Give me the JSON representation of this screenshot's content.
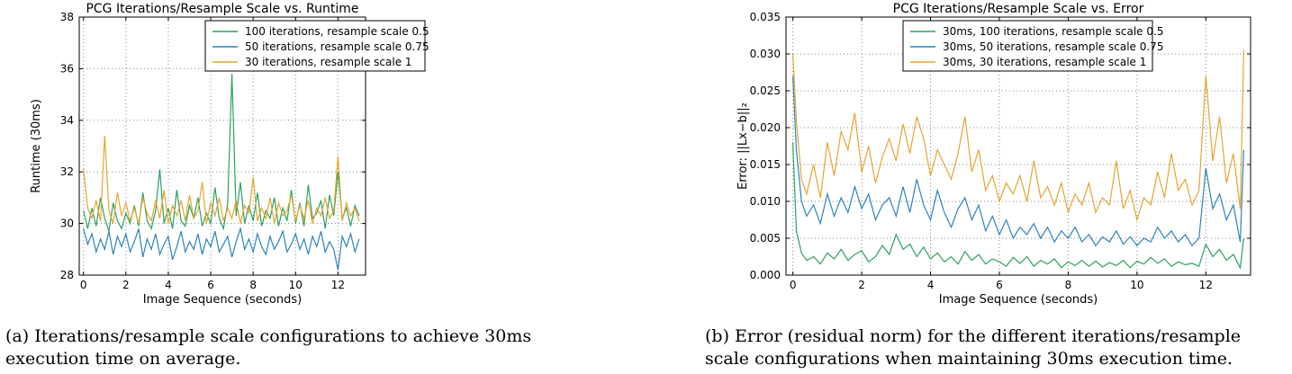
{
  "chart_data": [
    {
      "type": "line",
      "title": "PCG Iterations/Resample Scale vs. Runtime",
      "xlabel": "Image Sequence (seconds)",
      "ylabel": "Runtime (30ms)",
      "xlim": [
        -0.2,
        13.3
      ],
      "ylim": [
        28,
        38
      ],
      "xticks": [
        "0",
        "2",
        "4",
        "6",
        "8",
        "10",
        "12"
      ],
      "yticks": [
        "28",
        "30",
        "32",
        "34",
        "36",
        "38"
      ],
      "grid": true,
      "legend_position": "top-center",
      "series": [
        {
          "name": "100 iterations, resample scale 0.5",
          "color": "#2ca25f",
          "x": [
            0,
            0.2,
            0.4,
            0.6,
            0.8,
            1.0,
            1.2,
            1.4,
            1.6,
            1.8,
            2.0,
            2.2,
            2.4,
            2.6,
            2.8,
            3.0,
            3.2,
            3.4,
            3.6,
            3.8,
            4.0,
            4.2,
            4.4,
            4.6,
            4.8,
            5.0,
            5.2,
            5.4,
            5.6,
            5.8,
            6.0,
            6.2,
            6.4,
            6.6,
            6.8,
            7.0,
            7.2,
            7.4,
            7.6,
            7.8,
            8.0,
            8.2,
            8.4,
            8.6,
            8.8,
            9.0,
            9.2,
            9.4,
            9.6,
            9.8,
            10.0,
            10.2,
            10.4,
            10.6,
            10.8,
            11.0,
            11.2,
            11.4,
            11.6,
            11.8,
            12.0,
            12.2,
            12.4,
            12.6,
            12.8,
            13.0
          ],
          "values": [
            30.5,
            29.8,
            30.6,
            29.9,
            31.0,
            30.2,
            29.7,
            30.8,
            30.1,
            29.8,
            30.4,
            30.0,
            30.7,
            29.9,
            31.2,
            30.1,
            29.8,
            30.5,
            32.1,
            30.0,
            30.6,
            29.8,
            31.3,
            30.1,
            29.9,
            30.7,
            30.2,
            31.0,
            29.9,
            30.4,
            30.0,
            31.4,
            30.2,
            29.8,
            30.8,
            35.8,
            30.3,
            31.6,
            30.0,
            30.7,
            30.1,
            31.2,
            29.9,
            30.5,
            30.2,
            31.0,
            29.9,
            30.6,
            30.1,
            31.3,
            30.0,
            30.8,
            29.9,
            31.5,
            30.2,
            30.4,
            30.9,
            29.8,
            31.1,
            30.3,
            32.0,
            30.2,
            30.6,
            29.9,
            30.7,
            30.3
          ]
        },
        {
          "name": "50 iterations, resample scale 0.75",
          "color": "#2b83ba",
          "x": [
            0,
            0.2,
            0.4,
            0.6,
            0.8,
            1.0,
            1.2,
            1.4,
            1.6,
            1.8,
            2.0,
            2.2,
            2.4,
            2.6,
            2.8,
            3.0,
            3.2,
            3.4,
            3.6,
            3.8,
            4.0,
            4.2,
            4.4,
            4.6,
            4.8,
            5.0,
            5.2,
            5.4,
            5.6,
            5.8,
            6.0,
            6.2,
            6.4,
            6.6,
            6.8,
            7.0,
            7.2,
            7.4,
            7.6,
            7.8,
            8.0,
            8.2,
            8.4,
            8.6,
            8.8,
            9.0,
            9.2,
            9.4,
            9.6,
            9.8,
            10.0,
            10.2,
            10.4,
            10.6,
            10.8,
            11.0,
            11.2,
            11.4,
            11.6,
            11.8,
            12.0,
            12.2,
            12.4,
            12.6,
            12.8,
            13.0
          ],
          "values": [
            29.8,
            29.2,
            29.6,
            28.9,
            29.4,
            29.0,
            29.7,
            28.8,
            29.5,
            29.1,
            29.6,
            28.9,
            29.3,
            29.8,
            28.7,
            29.4,
            29.0,
            29.6,
            28.8,
            29.2,
            29.5,
            28.6,
            29.1,
            29.7,
            28.9,
            29.3,
            29.0,
            29.6,
            28.8,
            29.4,
            29.1,
            29.7,
            28.9,
            29.2,
            29.5,
            28.7,
            29.3,
            29.8,
            29.0,
            29.4,
            28.9,
            29.6,
            29.1,
            28.8,
            29.5,
            29.0,
            29.3,
            29.7,
            28.9,
            29.2,
            29.6,
            29.0,
            29.4,
            28.8,
            29.5,
            29.1,
            29.7,
            28.9,
            29.3,
            29.0,
            28.2,
            29.5,
            29.1,
            29.6,
            28.9,
            29.4
          ]
        },
        {
          "name": "30 iterations, resample scale 1",
          "color": "#e6a532",
          "x": [
            0,
            0.2,
            0.4,
            0.6,
            0.8,
            1.0,
            1.2,
            1.4,
            1.6,
            1.8,
            2.0,
            2.2,
            2.4,
            2.6,
            2.8,
            3.0,
            3.2,
            3.4,
            3.6,
            3.8,
            4.0,
            4.2,
            4.4,
            4.6,
            4.8,
            5.0,
            5.2,
            5.4,
            5.6,
            5.8,
            6.0,
            6.2,
            6.4,
            6.6,
            6.8,
            7.0,
            7.2,
            7.4,
            7.6,
            7.8,
            8.0,
            8.2,
            8.4,
            8.6,
            8.8,
            9.0,
            9.2,
            9.4,
            9.6,
            9.8,
            10.0,
            10.2,
            10.4,
            10.6,
            10.8,
            11.0,
            11.2,
            11.4,
            11.6,
            11.8,
            12.0,
            12.2,
            12.4,
            12.6,
            12.8,
            13.0
          ],
          "values": [
            32.1,
            30.6,
            30.2,
            30.9,
            30.1,
            33.4,
            30.5,
            30.0,
            31.2,
            30.3,
            30.8,
            30.1,
            30.6,
            30.0,
            31.0,
            30.4,
            30.1,
            30.9,
            30.2,
            31.3,
            30.0,
            30.7,
            30.3,
            30.9,
            30.1,
            31.1,
            30.2,
            30.5,
            31.6,
            30.0,
            30.8,
            30.3,
            31.0,
            30.1,
            30.6,
            30.2,
            30.9,
            30.0,
            30.7,
            30.4,
            31.8,
            30.1,
            30.6,
            30.2,
            31.0,
            30.0,
            30.8,
            30.3,
            30.5,
            31.1,
            30.1,
            30.7,
            30.2,
            30.9,
            30.0,
            30.6,
            30.3,
            31.0,
            30.2,
            30.5,
            32.6,
            30.1,
            30.8,
            30.3,
            30.6,
            30.1
          ]
        }
      ]
    },
    {
      "type": "line",
      "title": "PCG Iterations/Resample Scale vs. Error",
      "xlabel": "Image Sequence (seconds)",
      "ylabel": "Error: ||Lx−b||₂",
      "xlim": [
        -0.2,
        13.3
      ],
      "ylim": [
        0,
        0.035
      ],
      "xticks": [
        "0",
        "2",
        "4",
        "6",
        "8",
        "10",
        "12"
      ],
      "yticks": [
        "0.000",
        "0.005",
        "0.010",
        "0.015",
        "0.020",
        "0.025",
        "0.030",
        "0.035"
      ],
      "grid": true,
      "legend_position": "top-center",
      "series": [
        {
          "name": "30ms, 100 iterations, resample scale 0.5",
          "color": "#2ca25f",
          "x": [
            0,
            0.1,
            0.25,
            0.4,
            0.6,
            0.8,
            1.0,
            1.2,
            1.4,
            1.6,
            1.8,
            2.0,
            2.2,
            2.4,
            2.6,
            2.8,
            3.0,
            3.2,
            3.4,
            3.6,
            3.8,
            4.0,
            4.2,
            4.4,
            4.6,
            4.8,
            5.0,
            5.2,
            5.4,
            5.6,
            5.8,
            6.0,
            6.2,
            6.4,
            6.6,
            6.8,
            7.0,
            7.2,
            7.4,
            7.6,
            7.8,
            8.0,
            8.2,
            8.4,
            8.6,
            8.8,
            9.0,
            9.2,
            9.4,
            9.6,
            9.8,
            10.0,
            10.2,
            10.4,
            10.6,
            10.8,
            11.0,
            11.2,
            11.4,
            11.6,
            11.8,
            12.0,
            12.2,
            12.4,
            12.6,
            12.8,
            13.0,
            13.1
          ],
          "values": [
            0.018,
            0.006,
            0.003,
            0.002,
            0.0025,
            0.0015,
            0.003,
            0.0022,
            0.0035,
            0.002,
            0.0028,
            0.0033,
            0.0018,
            0.0025,
            0.004,
            0.0028,
            0.0055,
            0.0035,
            0.0042,
            0.0025,
            0.0038,
            0.0022,
            0.003,
            0.0018,
            0.0025,
            0.0015,
            0.0032,
            0.002,
            0.0028,
            0.0015,
            0.0022,
            0.0018,
            0.0012,
            0.0024,
            0.0016,
            0.0025,
            0.0012,
            0.002,
            0.0015,
            0.0022,
            0.001,
            0.0018,
            0.0013,
            0.002,
            0.0012,
            0.0019,
            0.0011,
            0.0017,
            0.0013,
            0.002,
            0.001,
            0.0019,
            0.0015,
            0.0024,
            0.0016,
            0.0022,
            0.0012,
            0.0018,
            0.0014,
            0.0016,
            0.0012,
            0.0042,
            0.0025,
            0.0035,
            0.002,
            0.0028,
            0.001,
            0.005
          ]
        },
        {
          "name": "30ms, 50 iterations, resample scale 0.75",
          "color": "#2b83ba",
          "x": [
            0,
            0.1,
            0.25,
            0.4,
            0.6,
            0.8,
            1.0,
            1.2,
            1.4,
            1.6,
            1.8,
            2.0,
            2.2,
            2.4,
            2.6,
            2.8,
            3.0,
            3.2,
            3.4,
            3.6,
            3.8,
            4.0,
            4.2,
            4.4,
            4.6,
            4.8,
            5.0,
            5.2,
            5.4,
            5.6,
            5.8,
            6.0,
            6.2,
            6.4,
            6.6,
            6.8,
            7.0,
            7.2,
            7.4,
            7.6,
            7.8,
            8.0,
            8.2,
            8.4,
            8.6,
            8.8,
            9.0,
            9.2,
            9.4,
            9.6,
            9.8,
            10.0,
            10.2,
            10.4,
            10.6,
            10.8,
            11.0,
            11.2,
            11.4,
            11.6,
            11.8,
            12.0,
            12.2,
            12.4,
            12.6,
            12.8,
            13.0,
            13.1
          ],
          "values": [
            0.027,
            0.017,
            0.01,
            0.008,
            0.0095,
            0.007,
            0.011,
            0.008,
            0.0105,
            0.0085,
            0.012,
            0.009,
            0.011,
            0.0075,
            0.0095,
            0.0105,
            0.008,
            0.012,
            0.0085,
            0.013,
            0.0095,
            0.0075,
            0.0115,
            0.0085,
            0.0065,
            0.009,
            0.0105,
            0.0075,
            0.0095,
            0.006,
            0.008,
            0.0055,
            0.0075,
            0.005,
            0.0065,
            0.0055,
            0.007,
            0.005,
            0.0065,
            0.0045,
            0.006,
            0.005,
            0.0065,
            0.0045,
            0.0055,
            0.004,
            0.0052,
            0.0045,
            0.006,
            0.0042,
            0.0052,
            0.004,
            0.005,
            0.0045,
            0.0065,
            0.005,
            0.006,
            0.0045,
            0.0055,
            0.004,
            0.005,
            0.0145,
            0.009,
            0.011,
            0.0075,
            0.0095,
            0.0045,
            0.017
          ]
        },
        {
          "name": "30ms, 30 iterations, resample scale 1",
          "color": "#e6a532",
          "x": [
            0,
            0.1,
            0.25,
            0.4,
            0.6,
            0.8,
            1.0,
            1.2,
            1.4,
            1.6,
            1.8,
            2.0,
            2.2,
            2.4,
            2.6,
            2.8,
            3.0,
            3.2,
            3.4,
            3.6,
            3.8,
            4.0,
            4.2,
            4.4,
            4.6,
            4.8,
            5.0,
            5.2,
            5.4,
            5.6,
            5.8,
            6.0,
            6.2,
            6.4,
            6.6,
            6.8,
            7.0,
            7.2,
            7.4,
            7.6,
            7.8,
            8.0,
            8.2,
            8.4,
            8.6,
            8.8,
            9.0,
            9.2,
            9.4,
            9.6,
            9.8,
            10.0,
            10.2,
            10.4,
            10.6,
            10.8,
            11.0,
            11.2,
            11.4,
            11.6,
            11.8,
            12.0,
            12.2,
            12.4,
            12.6,
            12.8,
            13.0,
            13.1
          ],
          "values": [
            0.03,
            0.021,
            0.013,
            0.011,
            0.015,
            0.0105,
            0.018,
            0.0135,
            0.0195,
            0.017,
            0.022,
            0.014,
            0.0175,
            0.0125,
            0.016,
            0.0185,
            0.0155,
            0.0205,
            0.0165,
            0.0215,
            0.0185,
            0.0135,
            0.017,
            0.015,
            0.013,
            0.0165,
            0.0215,
            0.014,
            0.017,
            0.0115,
            0.0135,
            0.01,
            0.0125,
            0.011,
            0.0135,
            0.01,
            0.0155,
            0.0105,
            0.012,
            0.0095,
            0.0125,
            0.0085,
            0.011,
            0.0095,
            0.0125,
            0.0085,
            0.0105,
            0.0095,
            0.0155,
            0.009,
            0.0115,
            0.0075,
            0.0105,
            0.0095,
            0.014,
            0.0105,
            0.0165,
            0.0115,
            0.013,
            0.0095,
            0.0115,
            0.027,
            0.0155,
            0.0215,
            0.0125,
            0.0165,
            0.009,
            0.0305
          ]
        }
      ]
    }
  ],
  "captions": {
    "a": "(a) Iterations/resample scale configurations to achieve 30ms execution time on average.",
    "b": "(b) Error (residual norm) for the different iterations/resample scale configurations when maintaining 30ms execution time."
  }
}
